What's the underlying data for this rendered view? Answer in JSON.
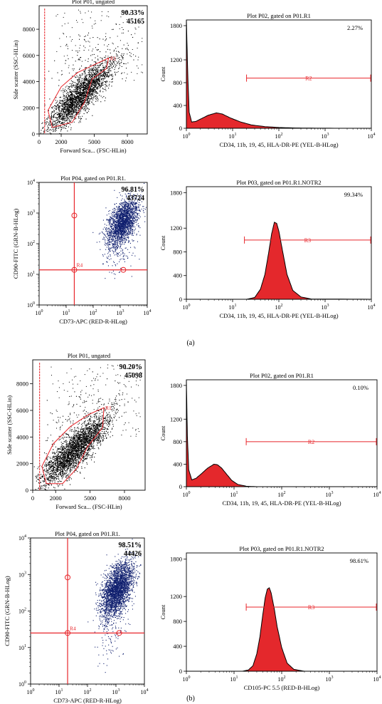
{
  "panel_labels": [
    "(a)",
    "(b)"
  ],
  "colors": {
    "gate_red": "#e8262b",
    "histogram_fill": "#e4282c",
    "dot_black": "#000000",
    "dot_blue": "#0f1f6e"
  },
  "chart_data": [
    {
      "type": "scatter",
      "panel": "a",
      "title": "Plot P01, ungated",
      "xlabel": "Forward Sca... (FSC-HLin)",
      "ylabel": "Side scatter (SSC-HLin)",
      "xscale": "linear",
      "yscale": "linear",
      "xlim": [
        0,
        9800
      ],
      "ylim": [
        0,
        9800
      ],
      "xticks": [
        0,
        2000,
        5000,
        8000
      ],
      "xtick_labels": [
        "0",
        "2000",
        "5000",
        "8000"
      ],
      "yticks": [
        0,
        2000,
        4000,
        6000,
        8000
      ],
      "ytick_labels": [
        "0",
        "2000",
        "4000",
        "6000",
        "8000"
      ],
      "stats": [
        "90.33%",
        "45165"
      ],
      "gate": {
        "name": "R1",
        "polygon": [
          [
            1200,
            500
          ],
          [
            800,
            1800
          ],
          [
            2000,
            3600
          ],
          [
            3500,
            4700
          ],
          [
            5000,
            5300
          ],
          [
            6300,
            5800
          ],
          [
            6100,
            5000
          ],
          [
            4800,
            4200
          ],
          [
            4100,
            2400
          ],
          [
            3000,
            900
          ]
        ]
      },
      "threshold_line_x": 500,
      "cloud": {
        "center": [
          3800,
          3000
        ],
        "count": 2600,
        "dot_color": "#000000"
      }
    },
    {
      "type": "area",
      "panel": "a",
      "title": "Plot P02, gated on P01.R1",
      "xlabel": "CD34, 11b, 19, 45, HLA-DR-PE (YEL-B-HLog)",
      "ylabel": "Count",
      "xscale": "log",
      "xlim": [
        1,
        10000
      ],
      "ylim": [
        0,
        1900
      ],
      "yticks": [
        0,
        400,
        800,
        1200,
        1800
      ],
      "ytick_labels": [
        "0",
        "400",
        "800",
        "1200",
        "1800"
      ],
      "stat": "2.27%",
      "marker": {
        "name": "R2",
        "x_start": 20,
        "x_end": 10000,
        "y": 880
      },
      "curve": [
        [
          1,
          1900
        ],
        [
          1.08,
          850
        ],
        [
          1.15,
          280
        ],
        [
          1.3,
          110
        ],
        [
          1.6,
          120
        ],
        [
          2,
          160
        ],
        [
          3,
          230
        ],
        [
          4.5,
          270
        ],
        [
          6,
          250
        ],
        [
          9,
          180
        ],
        [
          15,
          110
        ],
        [
          25,
          60
        ],
        [
          50,
          28
        ],
        [
          100,
          14
        ],
        [
          200,
          6
        ],
        [
          500,
          2
        ],
        [
          2000,
          0
        ],
        [
          10000,
          0
        ]
      ]
    },
    {
      "type": "scatter",
      "panel": "a",
      "title": "Plot P04, gated on P01.R1.",
      "xlabel": "CD73-APC (RED-R-HLog)",
      "ylabel": "CD90-FITC (GRN-B-HLog)",
      "xscale": "log",
      "yscale": "log",
      "xlim": [
        1,
        10000
      ],
      "ylim": [
        1,
        10000
      ],
      "stats": [
        "96.81%",
        "43724"
      ],
      "quadrant": {
        "name": "R4",
        "x": 20,
        "y": 14
      },
      "cloud": {
        "center": [
          1200,
          500
        ],
        "count": 2200,
        "dot_color": "#0f1f6e"
      }
    },
    {
      "type": "area",
      "panel": "a",
      "title": "Plot P03, gated on P01.R1.NOTR2",
      "xlabel": "CD34, 11b, 19, 45, HLA-DR-PE (YEL-B-HLog)",
      "ylabel": "Count",
      "xscale": "log",
      "xlim": [
        1,
        10000
      ],
      "ylim": [
        0,
        1900
      ],
      "yticks": [
        0,
        400,
        800,
        1200,
        1800
      ],
      "ytick_labels": [
        "0",
        "400",
        "800",
        "1200",
        "1800"
      ],
      "stat": "99.34%",
      "marker": {
        "name": "R3",
        "x_start": 18,
        "x_end": 10000,
        "y": 1000
      },
      "curve": [
        [
          1,
          0
        ],
        [
          20,
          0
        ],
        [
          30,
          30
        ],
        [
          40,
          170
        ],
        [
          50,
          420
        ],
        [
          60,
          780
        ],
        [
          70,
          1110
        ],
        [
          80,
          1300
        ],
        [
          90,
          1280
        ],
        [
          100,
          1150
        ],
        [
          120,
          820
        ],
        [
          150,
          420
        ],
        [
          200,
          150
        ],
        [
          300,
          40
        ],
        [
          500,
          5
        ],
        [
          10000,
          0
        ]
      ]
    },
    {
      "type": "scatter",
      "panel": "b",
      "title": "Plot P01, ungated",
      "xlabel": "Forward Sca... (FSC-HLin)",
      "ylabel": "Side scatter (SSC-HLin)",
      "xscale": "linear",
      "yscale": "linear",
      "xlim": [
        0,
        9800
      ],
      "ylim": [
        0,
        9800
      ],
      "xticks": [
        0,
        2000,
        5000,
        8000
      ],
      "xtick_labels": [
        "0",
        "2000",
        "5000",
        "8000"
      ],
      "yticks": [
        0,
        2000,
        4000,
        6000,
        8000
      ],
      "ytick_labels": [
        "0",
        "2000",
        "4000",
        "6000",
        "8000"
      ],
      "stats": [
        "90.20%",
        "45098"
      ],
      "gate": {
        "name": "R1",
        "polygon": [
          [
            1200,
            500
          ],
          [
            800,
            1800
          ],
          [
            1800,
            3500
          ],
          [
            3300,
            4800
          ],
          [
            4900,
            5700
          ],
          [
            6200,
            6200
          ],
          [
            6100,
            4700
          ],
          [
            4800,
            3300
          ],
          [
            3800,
            1600
          ],
          [
            2600,
            500
          ]
        ]
      },
      "threshold_line_x": 600,
      "cloud": {
        "center": [
          3700,
          3100
        ],
        "count": 2900,
        "dot_color": "#000000"
      }
    },
    {
      "type": "area",
      "panel": "b",
      "title": "Plot P02, gated on P01.R1",
      "xlabel": "CD34, 11b, 19, 45, HLA-DR-PE (YEL-B-HLog)",
      "ylabel": "Count",
      "xscale": "log",
      "xlim": [
        1,
        10000
      ],
      "ylim": [
        0,
        1900
      ],
      "yticks": [
        0,
        400,
        800,
        1200,
        1800
      ],
      "ytick_labels": [
        "0",
        "400",
        "800",
        "1200",
        "1800"
      ],
      "stat": "0.10%",
      "marker": {
        "name": "R2",
        "x_start": 18,
        "x_end": 10000,
        "y": 800
      },
      "curve": [
        [
          1,
          1900
        ],
        [
          1.05,
          900
        ],
        [
          1.12,
          300
        ],
        [
          1.3,
          120
        ],
        [
          1.6,
          150
        ],
        [
          2,
          220
        ],
        [
          2.8,
          330
        ],
        [
          3.8,
          400
        ],
        [
          4.5,
          390
        ],
        [
          5.5,
          330
        ],
        [
          7,
          220
        ],
        [
          9,
          110
        ],
        [
          12,
          40
        ],
        [
          18,
          8
        ],
        [
          30,
          0
        ],
        [
          10000,
          0
        ]
      ]
    },
    {
      "type": "scatter",
      "panel": "b",
      "title": "Plot P04, gated on P01.R1.",
      "xlabel": "CD73-APC (RED-R-HLog)",
      "ylabel": "CD90-FITC (GRN-B-HLog)",
      "xscale": "log",
      "yscale": "log",
      "xlim": [
        1,
        10000
      ],
      "ylim": [
        1,
        10000
      ],
      "stats": [
        "98.51%",
        "44426"
      ],
      "quadrant": {
        "name": "R4",
        "x": 20,
        "y": 25
      },
      "cloud": {
        "center": [
          1100,
          400
        ],
        "count": 2800,
        "dot_color": "#0f1f6e"
      }
    },
    {
      "type": "area",
      "panel": "b",
      "title": "Plot P03, gated on P01.R1.NOTR2",
      "xlabel": "CD105-PC 5.5 (RED-B-HLog)",
      "ylabel": "Count",
      "xscale": "log",
      "xlim": [
        1,
        10000
      ],
      "ylim": [
        0,
        1900
      ],
      "yticks": [
        0,
        400,
        800,
        1200,
        1800
      ],
      "ytick_labels": [
        "0",
        "400",
        "800",
        "1200",
        "1800"
      ],
      "stat": "98.61%",
      "marker": {
        "name": "R3",
        "x_start": 18,
        "x_end": 10000,
        "y": 1030
      },
      "curve": [
        [
          1,
          0
        ],
        [
          15,
          0
        ],
        [
          20,
          20
        ],
        [
          25,
          90
        ],
        [
          30,
          280
        ],
        [
          35,
          560
        ],
        [
          40,
          900
        ],
        [
          45,
          1180
        ],
        [
          50,
          1320
        ],
        [
          55,
          1340
        ],
        [
          60,
          1260
        ],
        [
          70,
          1000
        ],
        [
          80,
          720
        ],
        [
          100,
          380
        ],
        [
          130,
          130
        ],
        [
          180,
          30
        ],
        [
          300,
          0
        ],
        [
          10000,
          0
        ]
      ]
    }
  ]
}
